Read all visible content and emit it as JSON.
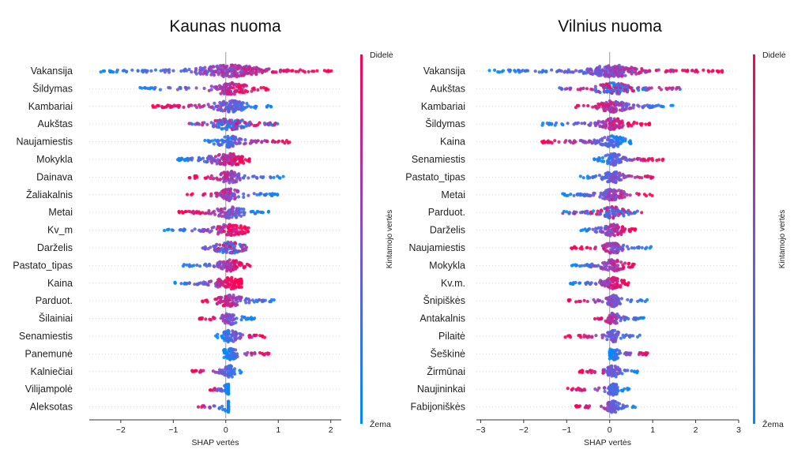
{
  "chart_data": [
    {
      "type": "scatter",
      "subtype": "beeswarm",
      "title": "Kaunas nuoma",
      "xlabel": "SHAP vertės",
      "ylabel": "",
      "xlim": [
        -2.6,
        2.2
      ],
      "xticks": [
        -2,
        -1,
        0,
        1,
        2
      ],
      "grid": false,
      "colorbar": {
        "label": "Kintamojo vertės",
        "high": "Didelė",
        "low": "Žema",
        "high_color": "#ff0052",
        "low_color": "#008bfb"
      },
      "features": [
        {
          "name": "Vakansija",
          "min": -2.45,
          "max": 2.05,
          "low_side": "left",
          "spread": 0.95,
          "n": 260
        },
        {
          "name": "Šildymas",
          "min": -1.7,
          "max": 0.85,
          "low_side": "left",
          "spread": 0.55,
          "n": 130
        },
        {
          "name": "Kambariai",
          "min": -1.4,
          "max": 0.9,
          "low_side": "right",
          "spread": 0.45,
          "n": 130
        },
        {
          "name": "Aukštas",
          "min": -0.7,
          "max": 1.0,
          "low_side": "mixed",
          "spread": 0.45,
          "n": 130
        },
        {
          "name": "Naujamiestis",
          "min": -0.4,
          "max": 1.25,
          "low_side": "left",
          "spread": 0.35,
          "n": 110
        },
        {
          "name": "Mokykla",
          "min": -0.95,
          "max": 0.45,
          "low_side": "left",
          "spread": 0.6,
          "n": 150
        },
        {
          "name": "Dainava",
          "min": -0.75,
          "max": 1.1,
          "low_side": "right",
          "spread": 0.3,
          "n": 100
        },
        {
          "name": "Žaliakalnis",
          "min": -0.75,
          "max": 1.05,
          "low_side": "right",
          "spread": 0.3,
          "n": 100
        },
        {
          "name": "Metai",
          "min": -0.9,
          "max": 0.85,
          "low_side": "right",
          "spread": 0.4,
          "n": 110
        },
        {
          "name": "Kv_m",
          "min": -1.2,
          "max": 0.45,
          "low_side": "left",
          "spread": 0.45,
          "n": 110
        },
        {
          "name": "Darželis",
          "min": -0.45,
          "max": 0.4,
          "low_side": "mixed",
          "spread": 0.4,
          "n": 100
        },
        {
          "name": "Pastato_tipas",
          "min": -0.85,
          "max": 0.55,
          "low_side": "left",
          "spread": 0.35,
          "n": 100
        },
        {
          "name": "Kaina",
          "min": -1.0,
          "max": 0.3,
          "low_side": "left",
          "spread": 0.45,
          "n": 110
        },
        {
          "name": "Parduot.",
          "min": -0.45,
          "max": 0.95,
          "low_side": "right",
          "spread": 0.35,
          "n": 100
        },
        {
          "name": "Šilainiai",
          "min": -0.5,
          "max": 0.55,
          "low_side": "right",
          "spread": 0.2,
          "n": 80
        },
        {
          "name": "Senamiestis",
          "min": -0.2,
          "max": 0.75,
          "low_side": "left",
          "spread": 0.2,
          "n": 80
        },
        {
          "name": "Panemunė",
          "min": -0.05,
          "max": 0.85,
          "low_side": "left",
          "spread": 0.2,
          "n": 80
        },
        {
          "name": "Kalniečiai",
          "min": -0.65,
          "max": 0.3,
          "low_side": "right",
          "spread": 0.15,
          "n": 70
        },
        {
          "name": "Vilijampolė",
          "min": -0.3,
          "max": 0.05,
          "low_side": "right",
          "spread": 0.15,
          "n": 50
        },
        {
          "name": "Aleksotas",
          "min": -0.6,
          "max": 0.05,
          "low_side": "right",
          "spread": 0.15,
          "n": 50
        }
      ]
    },
    {
      "type": "scatter",
      "subtype": "beeswarm",
      "title": "Vilnius nuoma",
      "xlabel": "SHAP vertės",
      "ylabel": "",
      "xlim": [
        -3.1,
        3.0
      ],
      "xticks": [
        -3,
        -2,
        -1,
        0,
        1,
        2,
        3
      ],
      "grid": false,
      "colorbar": {
        "label": "Kintamojo vertės",
        "high": "Didelė",
        "low": "Žema",
        "high_color": "#ff0052",
        "low_color": "#008bfb"
      },
      "features": [
        {
          "name": "Vakansija",
          "min": -2.8,
          "max": 2.75,
          "low_side": "left",
          "spread": 0.9,
          "n": 280
        },
        {
          "name": "Aukštas",
          "min": -1.2,
          "max": 1.75,
          "low_side": "mixed",
          "spread": 0.6,
          "n": 150
        },
        {
          "name": "Kambariai",
          "min": -0.9,
          "max": 1.5,
          "low_side": "right",
          "spread": 0.45,
          "n": 130
        },
        {
          "name": "Šildymas",
          "min": -1.6,
          "max": 0.95,
          "low_side": "left",
          "spread": 0.5,
          "n": 130
        },
        {
          "name": "Kaina",
          "min": -1.6,
          "max": 0.5,
          "low_side": "right",
          "spread": 0.45,
          "n": 120
        },
        {
          "name": "Senamiestis",
          "min": -0.4,
          "max": 1.25,
          "low_side": "left",
          "spread": 0.3,
          "n": 100
        },
        {
          "name": "Pastato_tipas",
          "min": -0.7,
          "max": 1.2,
          "low_side": "left",
          "spread": 0.3,
          "n": 100
        },
        {
          "name": "Metai",
          "min": -1.15,
          "max": 1.0,
          "low_side": "left",
          "spread": 0.4,
          "n": 110
        },
        {
          "name": "Parduot.",
          "min": -1.1,
          "max": 0.8,
          "low_side": "mixed",
          "spread": 0.4,
          "n": 110
        },
        {
          "name": "Darželis",
          "min": -0.7,
          "max": 0.6,
          "low_side": "left",
          "spread": 0.4,
          "n": 100
        },
        {
          "name": "Naujamiestis",
          "min": -0.9,
          "max": 1.2,
          "low_side": "right",
          "spread": 0.3,
          "n": 100
        },
        {
          "name": "Mokykla",
          "min": -0.9,
          "max": 0.6,
          "low_side": "left",
          "spread": 0.4,
          "n": 100
        },
        {
          "name": "Kv.m.",
          "min": -0.95,
          "max": 0.45,
          "low_side": "left",
          "spread": 0.4,
          "n": 100
        },
        {
          "name": "Šnipiškės",
          "min": -1.0,
          "max": 0.9,
          "low_side": "right",
          "spread": 0.2,
          "n": 90
        },
        {
          "name": "Antakalnis",
          "min": -0.5,
          "max": 0.8,
          "low_side": "right",
          "spread": 0.2,
          "n": 80
        },
        {
          "name": "Pilaitė",
          "min": -1.05,
          "max": 0.8,
          "low_side": "right",
          "spread": 0.2,
          "n": 80
        },
        {
          "name": "Šeškinė",
          "min": 0.0,
          "max": 0.9,
          "low_side": "left",
          "spread": 0.2,
          "n": 70
        },
        {
          "name": "Žirmūnai",
          "min": -0.7,
          "max": 0.65,
          "low_side": "right",
          "spread": 0.2,
          "n": 80
        },
        {
          "name": "Naujininkai",
          "min": -1.05,
          "max": 0.5,
          "low_side": "right",
          "spread": 0.2,
          "n": 80
        },
        {
          "name": "Fabijoniškės",
          "min": -0.8,
          "max": 0.6,
          "low_side": "right",
          "spread": 0.2,
          "n": 80
        }
      ]
    }
  ]
}
